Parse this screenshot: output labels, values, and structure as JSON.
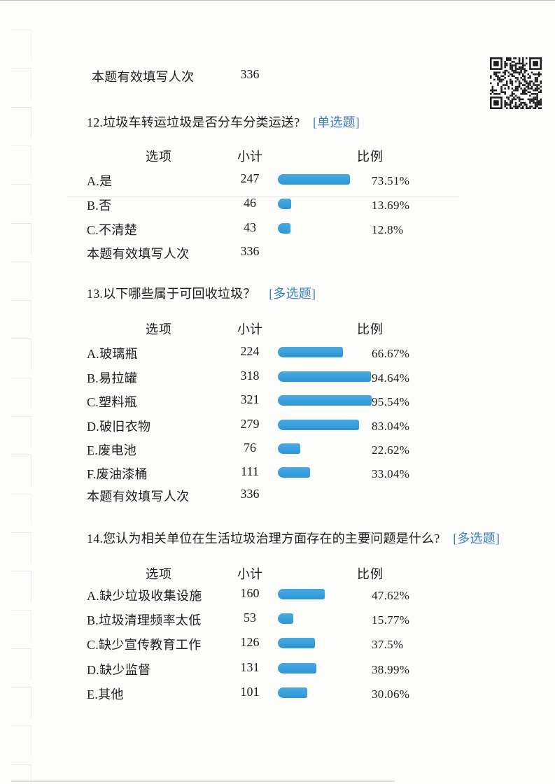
{
  "colors": {
    "bar": "#38a0dc",
    "tag": "#3c7ec7",
    "text": "#1e1e1e"
  },
  "top_total": {
    "label": "本题有效填写人次",
    "value": "336"
  },
  "columns": {
    "option": "选项",
    "count": "小计",
    "ratio": "比例"
  },
  "qr_code": {
    "name": "survey-qr-code"
  },
  "questions": [
    {
      "title": "12.垃圾车转运垃圾是否分车分类运送?",
      "tag": "[单选题]",
      "rows": [
        {
          "label": "A.是",
          "count": "247",
          "percent": "73.51%",
          "pct": 73.51
        },
        {
          "label": "B.否",
          "count": "46",
          "percent": "13.69%",
          "pct": 13.69
        },
        {
          "label": "C.不清楚",
          "count": "43",
          "percent": "12.8%",
          "pct": 12.8
        }
      ],
      "total_label": "本题有效填写人次",
      "total_value": "336"
    },
    {
      "title": "13.以下哪些属于可回收垃圾？",
      "tag": "[多选题]",
      "rows": [
        {
          "label": "A.玻璃瓶",
          "count": "224",
          "percent": "66.67%",
          "pct": 66.67
        },
        {
          "label": "B.易拉罐",
          "count": "318",
          "percent": "94.64%",
          "pct": 94.64
        },
        {
          "label": "C.塑料瓶",
          "count": "321",
          "percent": "95.54%",
          "pct": 95.54
        },
        {
          "label": "D.破旧衣物",
          "count": "279",
          "percent": "83.04%",
          "pct": 83.04
        },
        {
          "label": "E.废电池",
          "count": "76",
          "percent": "22.62%",
          "pct": 22.62
        },
        {
          "label": "F.废油漆桶",
          "count": "111",
          "percent": "33.04%",
          "pct": 33.04
        }
      ],
      "total_label": "本题有效填写人次",
      "total_value": "336"
    },
    {
      "title": "14.您认为相关单位在生活垃圾治理方面存在的主要问题是什么?",
      "tag": "[多选题]",
      "rows": [
        {
          "label": "A.缺少垃圾收集设施",
          "count": "160",
          "percent": "47.62%",
          "pct": 47.62
        },
        {
          "label": "B.垃圾清理频率太低",
          "count": "53",
          "percent": "15.77%",
          "pct": 15.77
        },
        {
          "label": "C.缺少宣传教育工作",
          "count": "126",
          "percent": "37.5%",
          "pct": 37.5
        },
        {
          "label": "D.缺少监督",
          "count": "131",
          "percent": "38.99%",
          "pct": 38.99
        },
        {
          "label": "E.其他",
          "count": "101",
          "percent": "30.06%",
          "pct": 30.06
        }
      ]
    }
  ],
  "chart_data": [
    {
      "type": "bar",
      "title": "12.垃圾车转运垃圾是否分车分类运送?",
      "question_type": "单选题",
      "categories": [
        "A.是",
        "B.否",
        "C.不清楚"
      ],
      "values": [
        247,
        46,
        43
      ],
      "percents": [
        73.51,
        13.69,
        12.8
      ],
      "valid_responses": 336,
      "xlabel": "小计",
      "ylabel": "选项",
      "xlim": [
        0,
        100
      ],
      "legend": "off",
      "grid": "off"
    },
    {
      "type": "bar",
      "title": "13.以下哪些属于可回收垃圾？",
      "question_type": "多选题",
      "categories": [
        "A.玻璃瓶",
        "B.易拉罐",
        "C.塑料瓶",
        "D.破旧衣物",
        "E.废电池",
        "F.废油漆桶"
      ],
      "values": [
        224,
        318,
        321,
        279,
        76,
        111
      ],
      "percents": [
        66.67,
        94.64,
        95.54,
        83.04,
        22.62,
        33.04
      ],
      "valid_responses": 336,
      "xlabel": "小计",
      "ylabel": "选项",
      "xlim": [
        0,
        100
      ],
      "legend": "off",
      "grid": "off"
    },
    {
      "type": "bar",
      "title": "14.您认为相关单位在生活垃圾治理方面存在的主要问题是什么?",
      "question_type": "多选题",
      "categories": [
        "A.缺少垃圾收集设施",
        "B.垃圾清理频率太低",
        "C.缺少宣传教育工作",
        "D.缺少监督",
        "E.其他"
      ],
      "values": [
        160,
        53,
        126,
        131,
        101
      ],
      "percents": [
        47.62,
        15.77,
        37.5,
        38.99,
        30.06
      ],
      "valid_responses": 336,
      "xlabel": "小计",
      "ylabel": "选项",
      "xlim": [
        0,
        100
      ],
      "legend": "off",
      "grid": "off"
    }
  ]
}
